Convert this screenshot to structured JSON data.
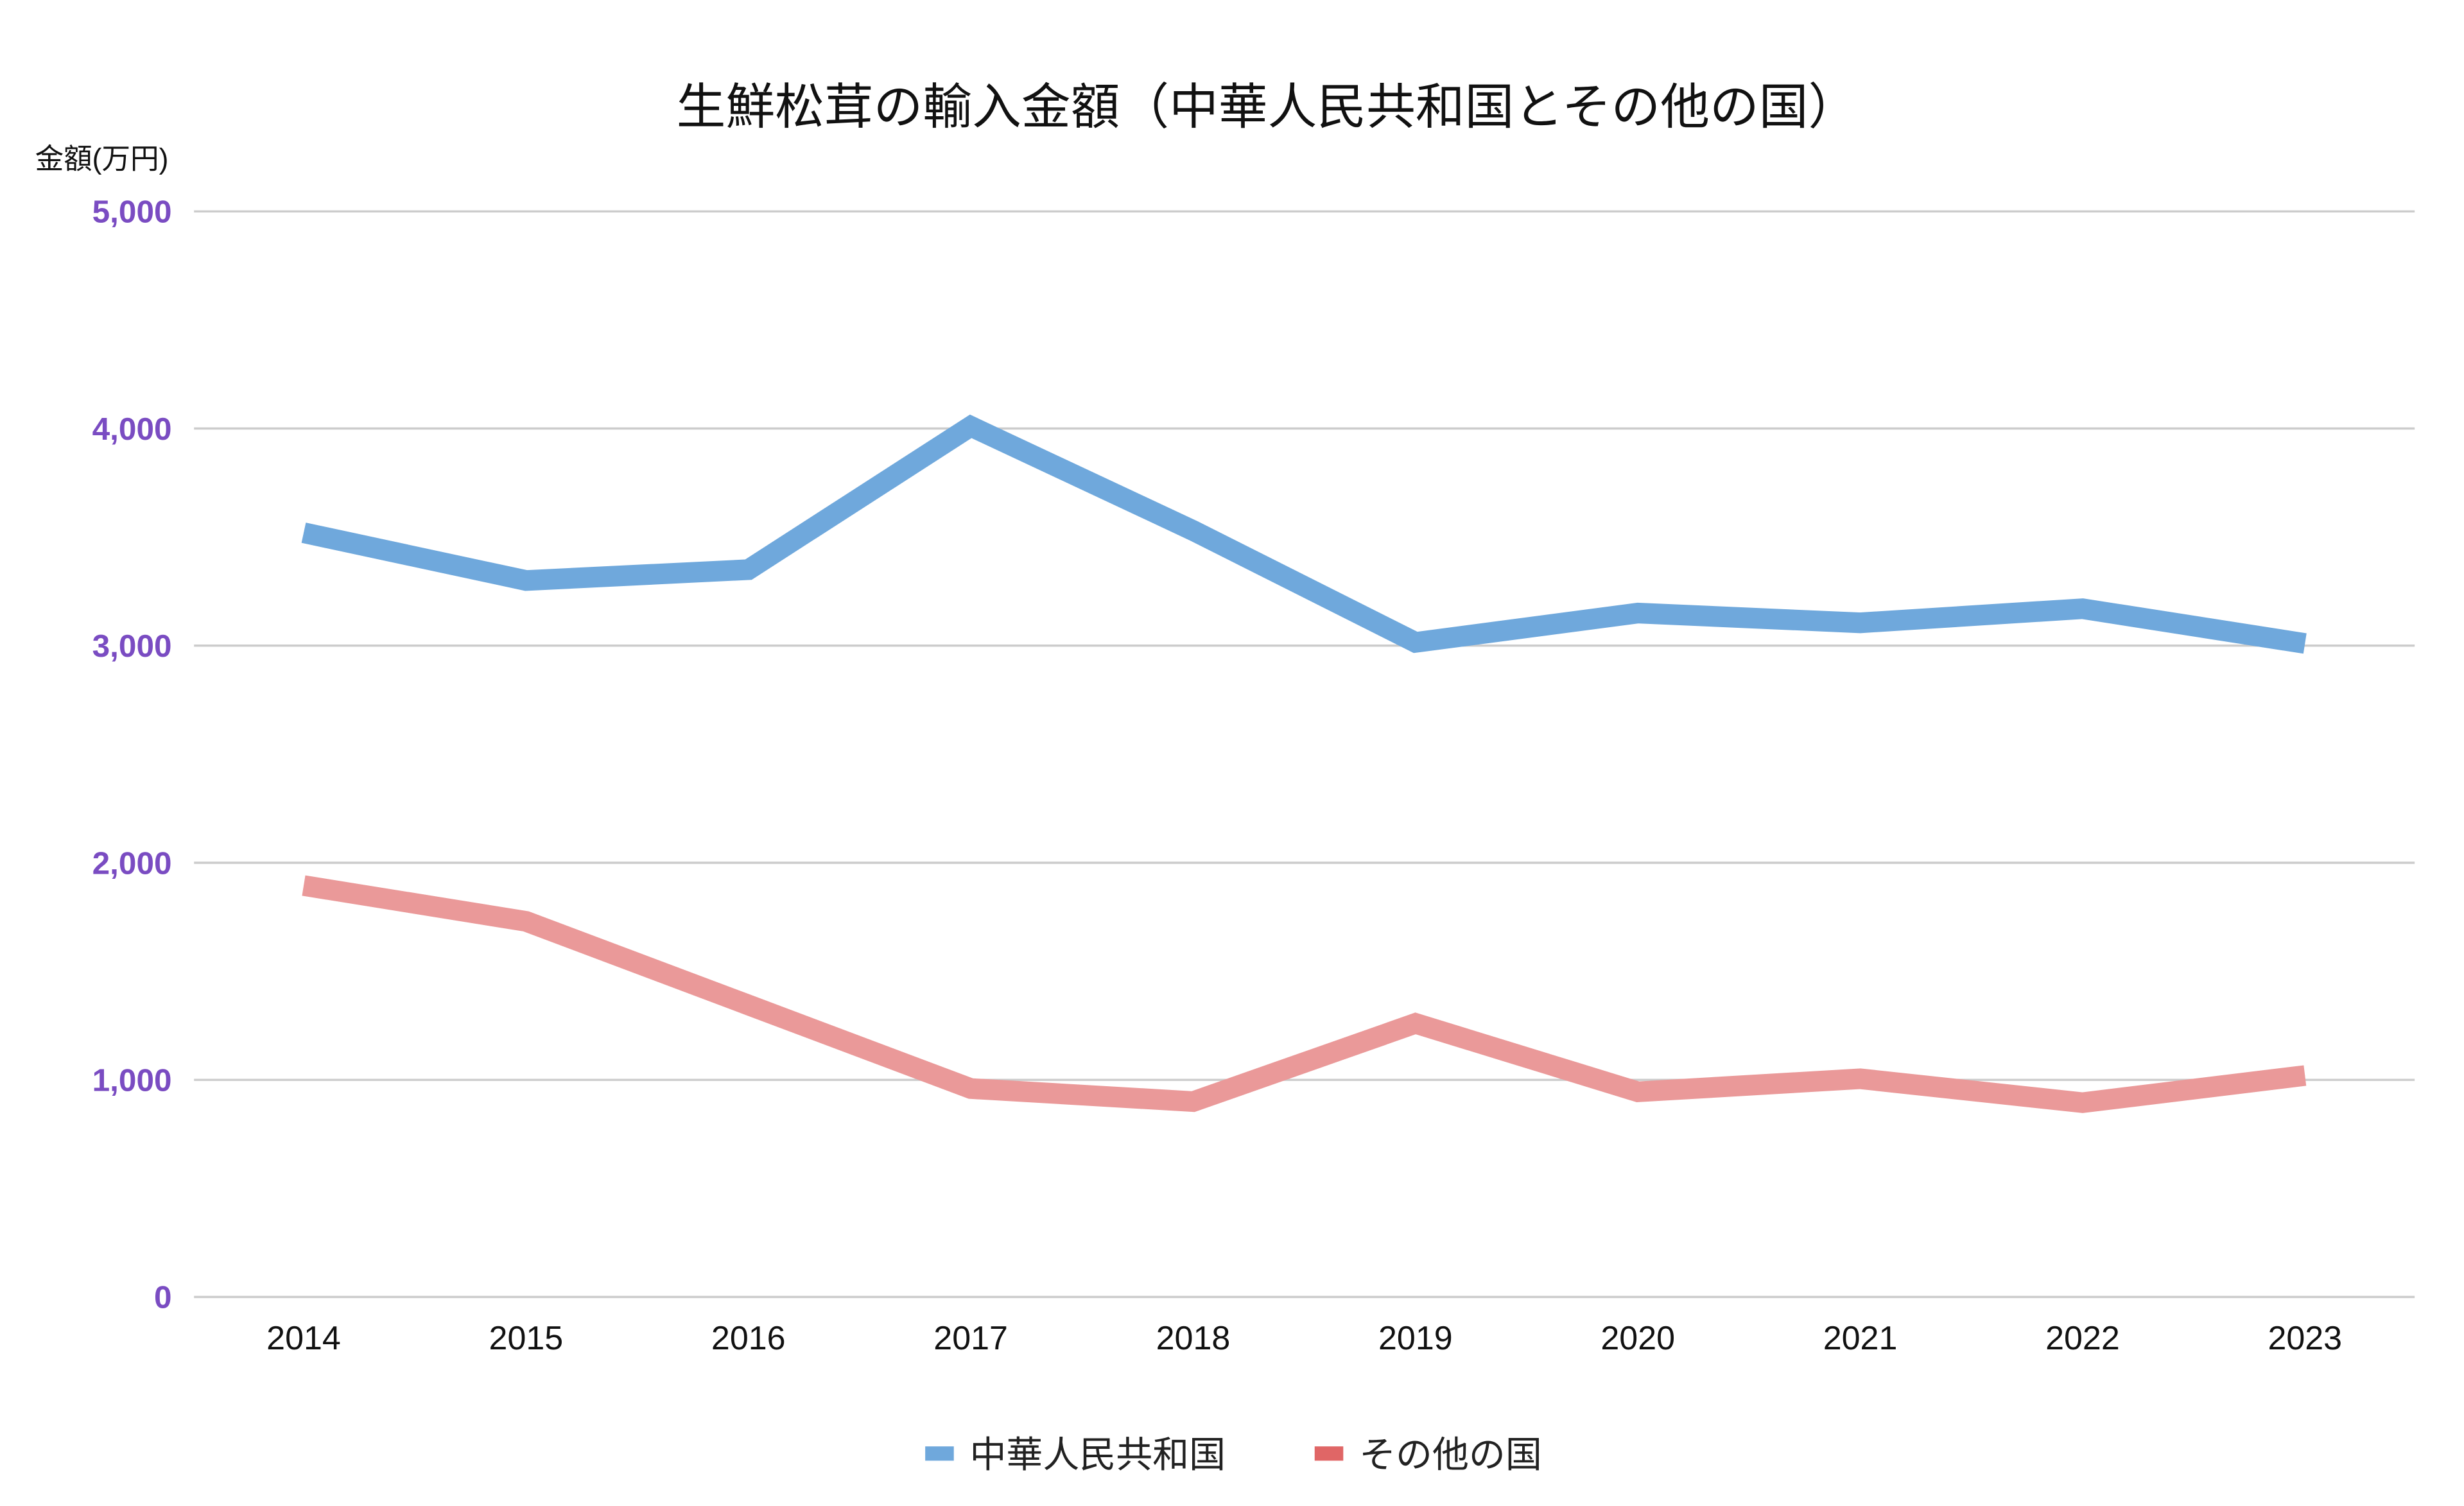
{
  "chart_data": {
    "type": "line",
    "title": "生鮮松茸の輸入金額（中華人民共和国とその他の国）",
    "xlabel": "",
    "ylabel": "金額(万円)",
    "ylim": [
      0,
      5000
    ],
    "yticks": [
      0,
      1000,
      2000,
      3000,
      4000,
      5000
    ],
    "ytick_labels": [
      "0",
      "1,000",
      "2,000",
      "3,000",
      "4,000",
      "5,000"
    ],
    "categories": [
      "2014",
      "2015",
      "2016",
      "2017",
      "2018",
      "2019",
      "2020",
      "2021",
      "2022",
      "2023"
    ],
    "grid": true,
    "legend_position": "bottom",
    "series": [
      {
        "name": "中華人民共和国",
        "color": "#6fa8dc",
        "values": [
          3520,
          3300,
          3350,
          4010,
          3530,
          3015,
          3150,
          3105,
          3170,
          3010
        ]
      },
      {
        "name": "その他の国",
        "color": "#ea9999",
        "legend_color": "#e06666",
        "values": [
          1895,
          1730,
          1345,
          960,
          900,
          1260,
          945,
          1005,
          895,
          1020
        ]
      }
    ]
  }
}
